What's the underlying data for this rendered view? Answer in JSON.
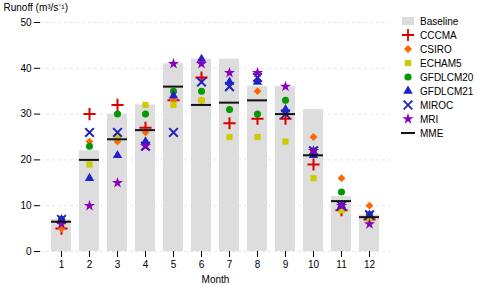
{
  "chart_data": {
    "type": "bar",
    "xlabel": "Month",
    "ylabel": "Runoff (m³/s⁻¹)",
    "categories": [
      "1",
      "2",
      "3",
      "4",
      "5",
      "6",
      "7",
      "8",
      "9",
      "10",
      "11",
      "12"
    ],
    "series": [
      {
        "name": "Baseline",
        "type": "bar",
        "color": "#dddddd",
        "values": [
          7,
          22,
          30,
          32,
          41,
          42,
          42,
          36,
          36,
          31,
          12,
          8
        ]
      },
      {
        "name": "CCCMA",
        "type": "scatter",
        "marker": "plus",
        "color": "#dd0000",
        "values": [
          5,
          30,
          32,
          27,
          33,
          38,
          28,
          29,
          29,
          19,
          9,
          7
        ]
      },
      {
        "name": "CSIRO",
        "type": "scatter",
        "marker": "diamond",
        "color": "#ff6600",
        "values": [
          5,
          24,
          24,
          26,
          33,
          33,
          31,
          35,
          33,
          25,
          16,
          10
        ]
      },
      {
        "name": "ECHAM5",
        "type": "scatter",
        "marker": "square",
        "color": "#cccc00",
        "values": [
          6,
          19,
          25,
          32,
          32,
          33,
          25,
          25,
          24,
          16,
          9,
          7
        ]
      },
      {
        "name": "GFDLCM20",
        "type": "scatter",
        "marker": "circle",
        "color": "#009900",
        "values": [
          7,
          23,
          30,
          30,
          35,
          35,
          31,
          30,
          33,
          22,
          13,
          8
        ]
      },
      {
        "name": "GFDLCM21",
        "type": "scatter",
        "marker": "triangle",
        "color": "#2222cc",
        "values": [
          7,
          16,
          21,
          24,
          34,
          42,
          37,
          37,
          31,
          21,
          10,
          8
        ]
      },
      {
        "name": "MIROC",
        "type": "scatter",
        "marker": "x",
        "color": "#2222bb",
        "values": [
          7,
          26,
          26,
          23,
          26,
          37,
          36,
          38,
          30,
          22,
          10,
          8
        ]
      },
      {
        "name": "MRI",
        "type": "scatter",
        "marker": "star",
        "color": "#8800bb",
        "values": [
          6,
          10,
          15,
          23,
          41,
          41,
          39,
          39,
          36,
          22,
          10,
          6
        ]
      },
      {
        "name": "MME",
        "type": "tick",
        "line_style": "solid",
        "color": "#111111",
        "values": [
          6.5,
          20,
          24.5,
          26.5,
          36,
          32,
          32.5,
          33,
          30,
          21,
          11,
          7.5
        ]
      }
    ],
    "ylim": [
      0,
      50
    ],
    "yticks": [
      0,
      10,
      20,
      30,
      40,
      50
    ],
    "grid": true,
    "legend": "upper right"
  }
}
